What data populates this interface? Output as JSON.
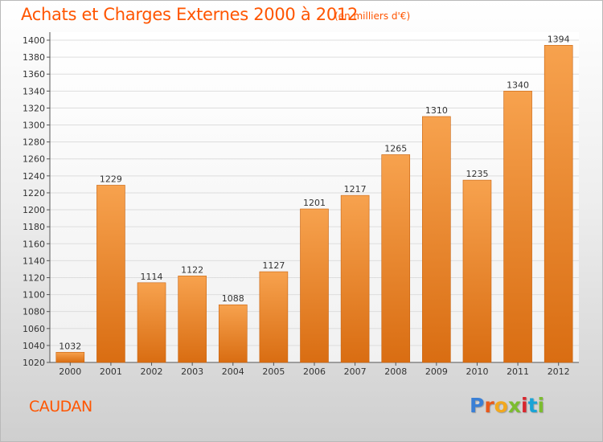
{
  "header": {
    "title": "Achats et Charges Externes 2000 à 2012",
    "subtitle": "(en milliers d'€)"
  },
  "footer": {
    "location": "CAUDAN",
    "brand_letters": [
      "P",
      "r",
      "o",
      "x",
      "i",
      "t",
      "i"
    ]
  },
  "colors": {
    "title": "#ff5500",
    "bar_top": "#f7a24e",
    "bar_bottom": "#d96d12",
    "grid": "#dddddd",
    "brand": [
      "#3a7fd5",
      "#e8591a",
      "#f2a81d",
      "#7cbd2f",
      "#d8262e",
      "#1aa3d6",
      "#7cbd2f"
    ]
  },
  "chart_data": {
    "type": "bar",
    "title": "Achats et Charges Externes 2000 à 2012",
    "subtitle": "(en milliers d'€)",
    "categories": [
      "2000",
      "2001",
      "2002",
      "2003",
      "2004",
      "2005",
      "2006",
      "2007",
      "2008",
      "2009",
      "2010",
      "2011",
      "2012"
    ],
    "values": [
      1032,
      1229,
      1114,
      1122,
      1088,
      1127,
      1201,
      1217,
      1265,
      1310,
      1235,
      1340,
      1394
    ],
    "ylim": [
      1020,
      1400
    ],
    "yticks": [
      1020,
      1040,
      1060,
      1080,
      1100,
      1120,
      1140,
      1160,
      1180,
      1200,
      1220,
      1240,
      1260,
      1280,
      1300,
      1320,
      1340,
      1360,
      1380,
      1400
    ],
    "grid": true,
    "data_labels": true,
    "xlabel": "",
    "ylabel": ""
  }
}
